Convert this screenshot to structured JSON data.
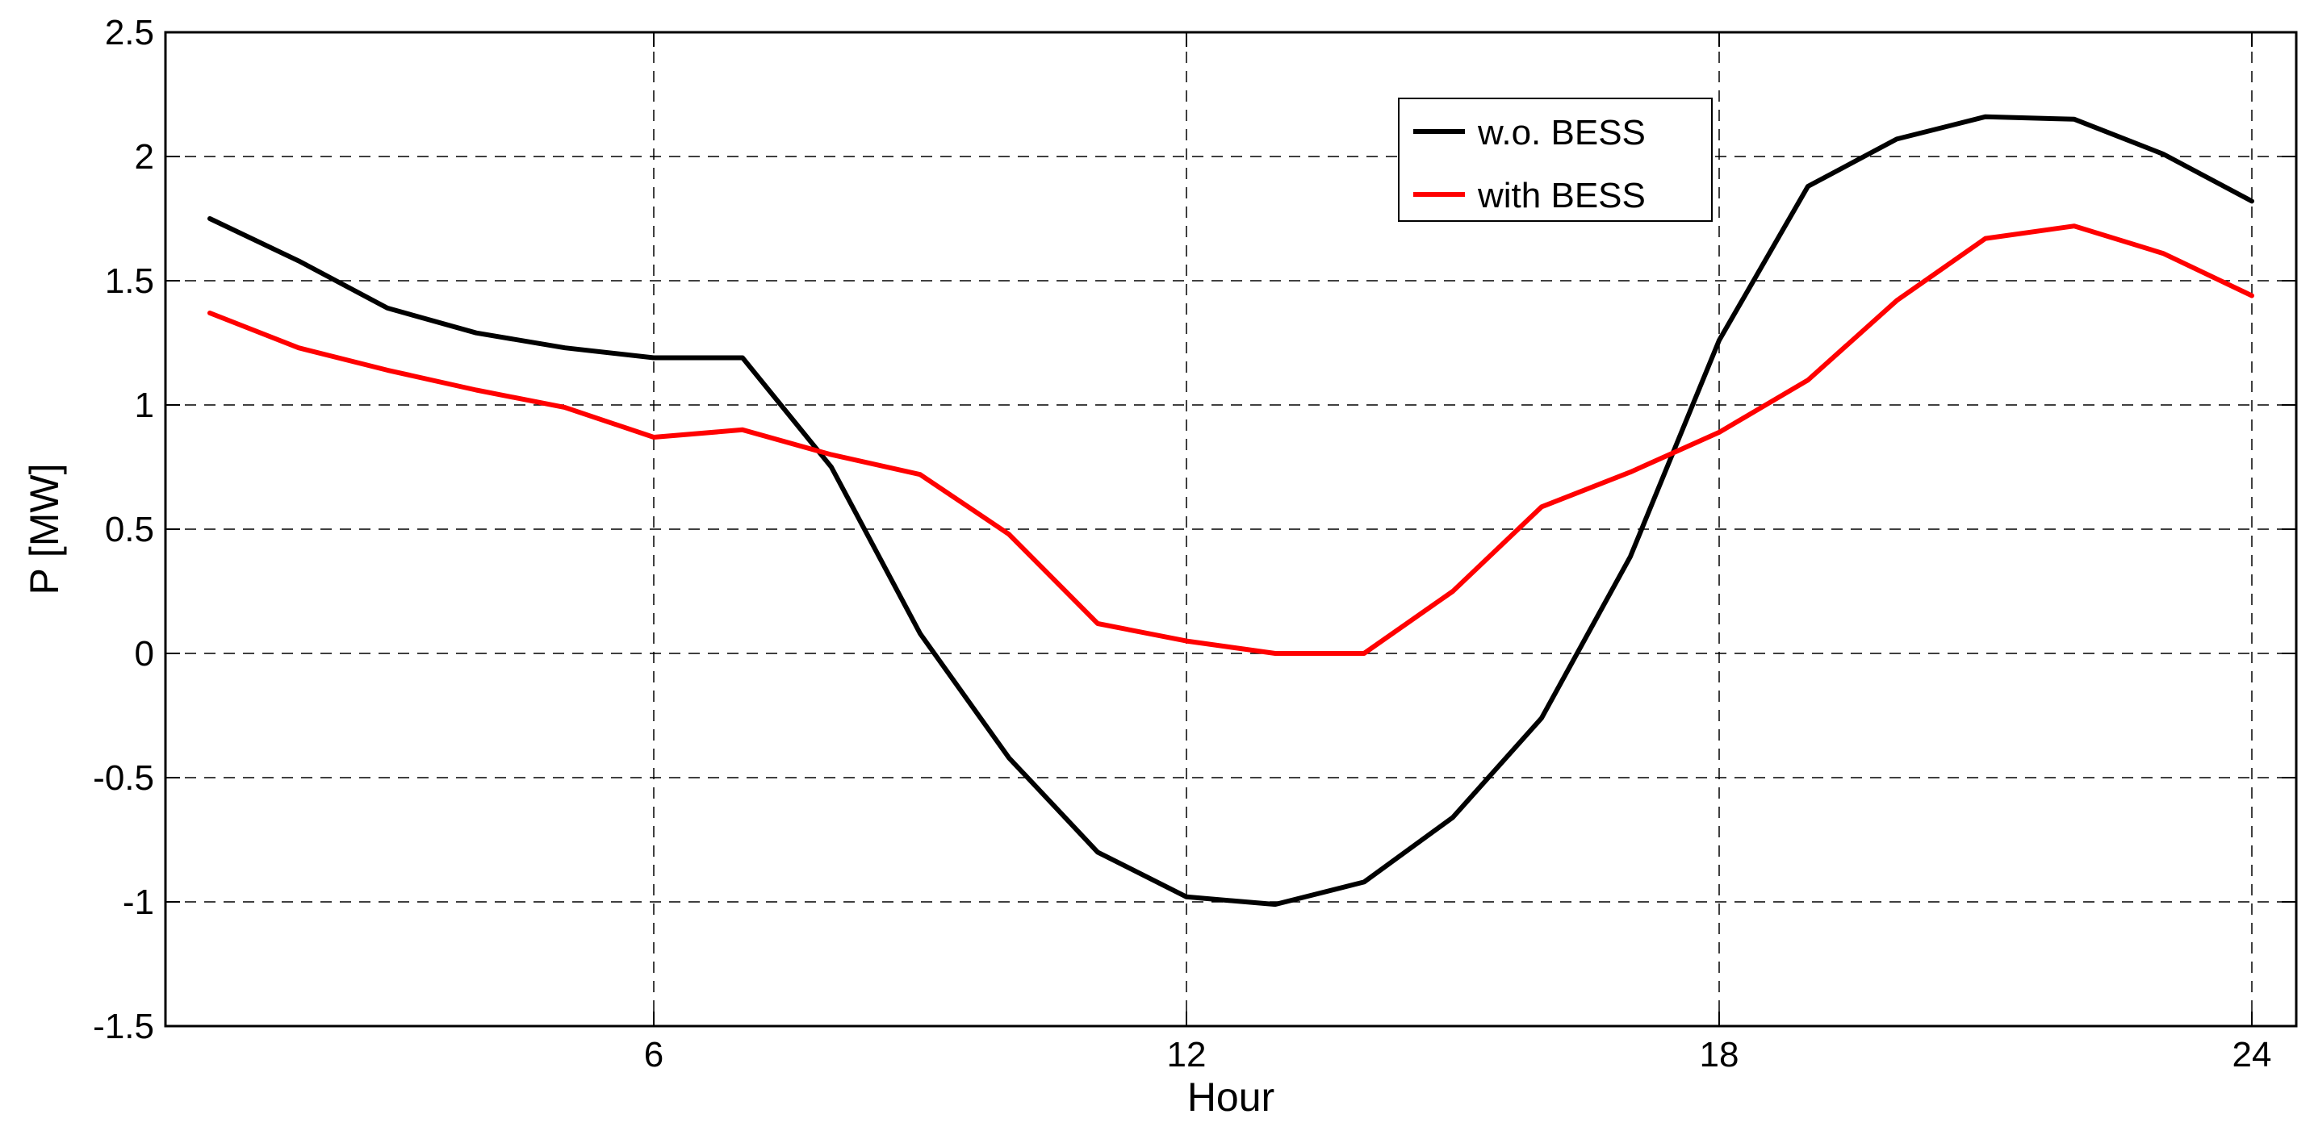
{
  "chart_data": {
    "type": "line",
    "xlabel": "Hour",
    "ylabel": "P [MW]",
    "xlim": [
      0.5,
      24.5
    ],
    "ylim": [
      -1.5,
      2.5
    ],
    "x_ticks": [
      6,
      12,
      18,
      24
    ],
    "y_ticks": [
      -1.5,
      -1,
      -0.5,
      0,
      0.5,
      1,
      1.5,
      2,
      2.5
    ],
    "x_tick_labels": [
      "6",
      "12",
      "18",
      "24"
    ],
    "y_tick_labels": [
      "-1.5",
      "-1",
      "-0.5",
      "0",
      "0.5",
      "1",
      "1.5",
      "2",
      "2.5"
    ],
    "grid": true,
    "legend_position": "top-right",
    "x": [
      1,
      2,
      3,
      4,
      5,
      6,
      7,
      8,
      9,
      10,
      11,
      12,
      13,
      14,
      15,
      16,
      17,
      18,
      19,
      20,
      21,
      22,
      23,
      24
    ],
    "series": [
      {
        "name": "w.o. BESS",
        "color": "#000000",
        "values": [
          1.75,
          1.58,
          1.39,
          1.29,
          1.23,
          1.19,
          1.19,
          0.75,
          0.08,
          -0.42,
          -0.8,
          -0.98,
          -1.01,
          -0.92,
          -0.66,
          -0.26,
          0.39,
          1.26,
          1.88,
          2.07,
          2.16,
          2.15,
          2.01,
          1.82
        ]
      },
      {
        "name": "with BESS",
        "color": "#ff0000",
        "values": [
          1.37,
          1.23,
          1.14,
          1.06,
          0.99,
          0.87,
          0.9,
          0.8,
          0.72,
          0.48,
          0.12,
          0.05,
          0.0,
          0.0,
          0.25,
          0.59,
          0.73,
          0.89,
          1.1,
          1.42,
          1.67,
          1.72,
          1.61,
          1.44
        ]
      }
    ]
  }
}
